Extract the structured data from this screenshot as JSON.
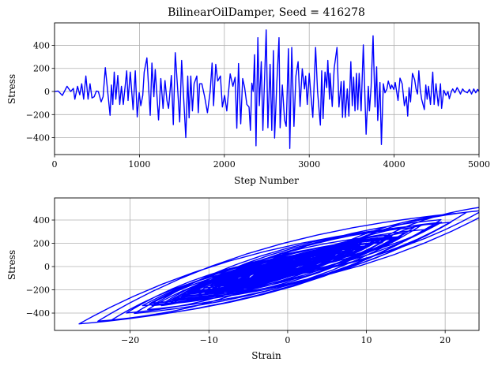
{
  "chart_data": [
    {
      "type": "line",
      "title": "BilinearOilDamper, Seed = 416278",
      "xlabel": "Step Number",
      "ylabel": "Stress",
      "xlim": [
        0,
        5000
      ],
      "ylim": [
        -546,
        594
      ],
      "xticks": [
        0,
        1000,
        2000,
        3000,
        4000,
        5000
      ],
      "xtick_labels": [
        "0",
        "1000",
        "2000",
        "3000",
        "4000",
        "5000"
      ],
      "yticks": [
        -400,
        -200,
        0,
        200,
        400
      ],
      "ytick_labels": [
        "−400",
        "−200",
        "0",
        "200",
        "400"
      ],
      "grid": true,
      "color": "#0000ff",
      "x": [
        0,
        42,
        92,
        147,
        190,
        222,
        239,
        271,
        297,
        320,
        343,
        369,
        395,
        418,
        441,
        467,
        493,
        516,
        549,
        572,
        598,
        654,
        670,
        686,
        703,
        722,
        745,
        768,
        788,
        810,
        850,
        866,
        892,
        925,
        951,
        974,
        997,
        1016,
        1039,
        1056,
        1088,
        1127,
        1147,
        1170,
        1186,
        1225,
        1252,
        1278,
        1301,
        1324,
        1343,
        1376,
        1399,
        1422,
        1448,
        1474,
        1497,
        1520,
        1546,
        1569,
        1585,
        1605,
        1624,
        1644,
        1676,
        1693,
        1709,
        1735,
        1768,
        1801,
        1833,
        1856,
        1873,
        1899,
        1922,
        1938,
        1954,
        1977,
        2003,
        2029,
        2069,
        2101,
        2127,
        2147,
        2167,
        2193,
        2216,
        2239,
        2265,
        2291,
        2307,
        2324,
        2340,
        2356,
        2373,
        2395,
        2412,
        2435,
        2454,
        2477,
        2493,
        2513,
        2539,
        2559,
        2578,
        2592,
        2618,
        2644,
        2657,
        2683,
        2709,
        2729,
        2755,
        2771,
        2794,
        2820,
        2843,
        2869,
        2892,
        2918,
        2944,
        2958,
        2977,
        3000,
        3016,
        3042,
        3055,
        3075,
        3098,
        3131,
        3147,
        3163,
        3186,
        3206,
        3219,
        3239,
        3245,
        3271,
        3294,
        3327,
        3350,
        3376,
        3392,
        3408,
        3425,
        3448,
        3467,
        3490,
        3507,
        3523,
        3539,
        3556,
        3572,
        3588,
        3611,
        3637,
        3670,
        3696,
        3709,
        3729,
        3752,
        3775,
        3794,
        3807,
        3833,
        3850,
        3873,
        3892,
        3915,
        3931,
        3958,
        3971,
        3997,
        4013,
        4046,
        4069,
        4095,
        4121,
        4144,
        4160,
        4176,
        4193,
        4216,
        4242,
        4258,
        4275,
        4291,
        4307,
        4324,
        4356,
        4373,
        4389,
        4405,
        4428,
        4455,
        4471,
        4493,
        4520,
        4546,
        4559,
        4585,
        4611,
        4634,
        4650,
        4676,
        4690,
        4716,
        4742,
        4765,
        4781,
        4807,
        4830,
        4863,
        4886,
        4912,
        4938,
        4961,
        4984,
        5000
      ],
      "values": [
        0,
        4,
        -34,
        45,
        0,
        27,
        -67,
        45,
        -29,
        67,
        -67,
        134,
        -67,
        67,
        -56,
        -45,
        4,
        0,
        -90,
        -45,
        206,
        -206,
        56,
        -112,
        168,
        -67,
        139,
        -112,
        45,
        -112,
        179,
        -78,
        168,
        -157,
        179,
        -220,
        -11,
        -123,
        -34,
        168,
        291,
        -206,
        246,
        -45,
        190,
        -246,
        112,
        -146,
        94,
        -78,
        -146,
        139,
        -287,
        336,
        45,
        -264,
        269,
        -45,
        -399,
        134,
        -228,
        134,
        -168,
        67,
        134,
        -184,
        67,
        67,
        -45,
        -184,
        0,
        246,
        -123,
        235,
        90,
        112,
        134,
        -134,
        -34,
        -168,
        152,
        45,
        123,
        -318,
        242,
        -280,
        112,
        34,
        -112,
        -134,
        -336,
        72,
        0,
        318,
        -470,
        466,
        -123,
        258,
        -336,
        179,
        533,
        -314,
        235,
        -336,
        354,
        -403,
        67,
        466,
        -314,
        56,
        -246,
        -302,
        370,
        -493,
        381,
        -302,
        134,
        258,
        -130,
        197,
        22,
        134,
        -112,
        157,
        0,
        -224,
        11,
        381,
        0,
        -291,
        179,
        -235,
        168,
        34,
        269,
        -67,
        157,
        -130,
        202,
        381,
        -134,
        85,
        -224,
        90,
        -224,
        22,
        -213,
        258,
        -123,
        123,
        -168,
        157,
        -157,
        157,
        -168,
        403,
        -370,
        45,
        -168,
        40,
        482,
        -134,
        213,
        -251,
        78,
        -459,
        67,
        -11,
        22,
        90,
        22,
        56,
        18,
        78,
        -78,
        116,
        67,
        -123,
        -45,
        -213,
        34,
        -90,
        157,
        101,
        22,
        -22,
        179,
        22,
        -67,
        -157,
        56,
        -67,
        45,
        -112,
        168,
        -112,
        67,
        -123,
        67,
        -146,
        11,
        -34,
        0,
        -63,
        4,
        22,
        -11,
        34,
        4,
        -22,
        22,
        0,
        -11,
        18,
        -22,
        22,
        -11,
        18,
        0
      ]
    },
    {
      "type": "line",
      "title": "",
      "xlabel": "Strain",
      "ylabel": "Stress",
      "xlim": [
        -29.6,
        24.3
      ],
      "ylim": [
        -549,
        590
      ],
      "xticks": [
        -20,
        -10,
        0,
        10,
        20
      ],
      "xtick_labels": [
        "−20",
        "−10",
        "0",
        "10",
        "20"
      ],
      "yticks": [
        -400,
        -200,
        0,
        200,
        400
      ],
      "ytick_labels": [
        "−400",
        "−200",
        "0",
        "200",
        "400"
      ],
      "grid": true,
      "color": "#0000ff",
      "series_source": "stress-strain hysteresis of the stress history above"
    }
  ]
}
